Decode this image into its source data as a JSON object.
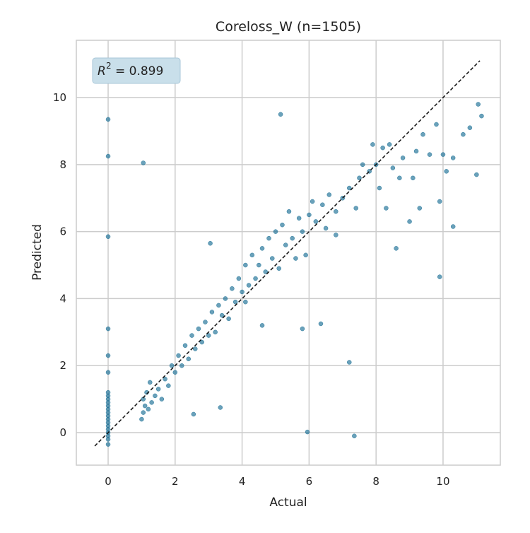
{
  "chart_data": {
    "type": "scatter",
    "title": "Coreloss_W  (n=1505)",
    "x_label": "Actual",
    "y_label": "Predicted",
    "annotation": {
      "symbol": "R",
      "superscript": "2",
      "text": "= 0.899"
    },
    "color": "#1a6f95",
    "reference_line": {
      "x": [
        -0.4,
        11.1
      ],
      "y": [
        -0.4,
        11.1
      ],
      "color": "#111111"
    },
    "xlim": [
      -0.95,
      11.71
    ],
    "ylim": [
      -0.97,
      11.71
    ],
    "xticks": [
      0,
      2,
      4,
      6,
      8,
      10
    ],
    "yticks": [
      0,
      2,
      4,
      6,
      8,
      10
    ],
    "grid": true,
    "x": [
      0,
      0,
      0,
      0,
      0,
      0,
      0,
      0,
      0,
      0,
      0,
      0,
      0,
      0,
      0,
      0,
      0,
      0,
      0,
      0,
      0,
      0,
      1.0,
      1.05,
      1.1,
      1.05,
      1.2,
      1.3,
      1.15,
      1.4,
      1.5,
      1.6,
      1.25,
      1.7,
      1.8,
      1.9,
      2.0,
      2.1,
      2.2,
      2.3,
      2.4,
      2.5,
      2.6,
      2.7,
      2.8,
      2.9,
      3.0,
      3.1,
      3.2,
      3.3,
      3.4,
      3.5,
      3.6,
      3.7,
      3.8,
      3.9,
      4.0,
      4.1,
      4.2,
      4.3,
      4.4,
      4.5,
      4.6,
      4.7,
      4.8,
      4.9,
      5.0,
      5.1,
      5.2,
      5.3,
      5.4,
      5.5,
      5.6,
      5.7,
      5.8,
      5.9,
      6.0,
      6.1,
      6.2,
      6.4,
      6.5,
      6.6,
      6.8,
      7.0,
      7.2,
      7.4,
      7.5,
      7.6,
      7.8,
      7.9,
      8.0,
      8.1,
      8.2,
      8.3,
      8.4,
      8.5,
      8.6,
      8.7,
      8.8,
      9.0,
      9.1,
      9.2,
      9.3,
      9.4,
      9.6,
      9.8,
      9.9,
      10.0,
      10.1,
      10.3,
      10.6,
      10.8,
      11.0,
      11.05,
      11.15,
      10.3,
      6.8,
      4.1,
      4.6,
      1.05,
      5.15,
      5.95,
      7.35,
      7.2,
      9.9,
      5.8,
      6.35,
      3.35,
      2.55,
      3.05
    ],
    "y": [
      -0.35,
      -0.2,
      -0.1,
      0,
      0.1,
      0.2,
      0.3,
      0.4,
      0.5,
      0.6,
      0.7,
      0.8,
      0.9,
      1.0,
      1.1,
      1.2,
      1.8,
      2.3,
      3.1,
      5.85,
      8.25,
      9.35,
      0.4,
      0.6,
      0.8,
      1.0,
      0.7,
      0.9,
      1.2,
      1.1,
      1.3,
      1.0,
      1.5,
      1.6,
      1.4,
      2.0,
      1.8,
      2.3,
      2.0,
      2.6,
      2.2,
      2.9,
      2.5,
      3.1,
      2.7,
      3.3,
      2.9,
      3.6,
      3.0,
      3.8,
      3.5,
      4.0,
      3.4,
      4.3,
      3.9,
      4.6,
      4.2,
      5.0,
      4.4,
      5.3,
      4.6,
      5.0,
      5.5,
      4.8,
      5.8,
      5.2,
      6.0,
      4.9,
      6.2,
      5.6,
      6.6,
      5.8,
      5.2,
      6.4,
      6.0,
      5.3,
      6.5,
      6.9,
      6.3,
      6.8,
      6.1,
      7.1,
      6.6,
      7.0,
      7.3,
      6.7,
      7.6,
      8.0,
      7.8,
      8.6,
      8.0,
      7.3,
      8.5,
      6.7,
      8.6,
      7.9,
      5.5,
      7.6,
      8.2,
      6.3,
      7.6,
      8.4,
      6.7,
      8.9,
      8.3,
      9.2,
      6.9,
      8.3,
      7.8,
      8.2,
      8.9,
      9.1,
      7.7,
      9.8,
      9.45,
      6.15,
      5.9,
      3.9,
      3.2,
      8.05,
      9.5,
      0.02,
      -0.1,
      2.1,
      4.65,
      3.1,
      3.25,
      0.75,
      0.55,
      5.65
    ]
  }
}
